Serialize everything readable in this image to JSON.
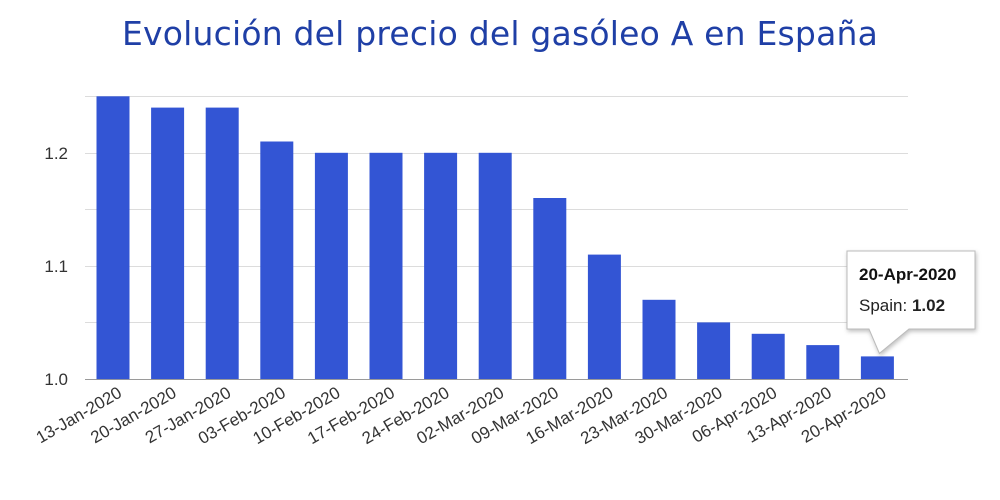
{
  "chart_data": {
    "type": "bar",
    "title": "Evolución del precio del gasóleo A en España",
    "categories": [
      "13-Jan-2020",
      "20-Jan-2020",
      "27-Jan-2020",
      "03-Feb-2020",
      "10-Feb-2020",
      "17-Feb-2020",
      "24-Feb-2020",
      "02-Mar-2020",
      "09-Mar-2020",
      "16-Mar-2020",
      "23-Mar-2020",
      "30-Mar-2020",
      "06-Apr-2020",
      "13-Apr-2020",
      "20-Apr-2020"
    ],
    "series": [
      {
        "name": "Spain",
        "values": [
          1.25,
          1.24,
          1.24,
          1.21,
          1.2,
          1.2,
          1.2,
          1.2,
          1.16,
          1.11,
          1.07,
          1.05,
          1.04,
          1.03,
          1.02
        ]
      }
    ],
    "ylim": [
      1.0,
      1.25
    ],
    "yticks": [
      "1.0",
      "1.1",
      "1.2"
    ],
    "grid": true,
    "bar_color": "#3355d4",
    "tooltip": {
      "date": "20-Apr-2020",
      "series_label": "Spain: ",
      "value": "1.02"
    }
  }
}
